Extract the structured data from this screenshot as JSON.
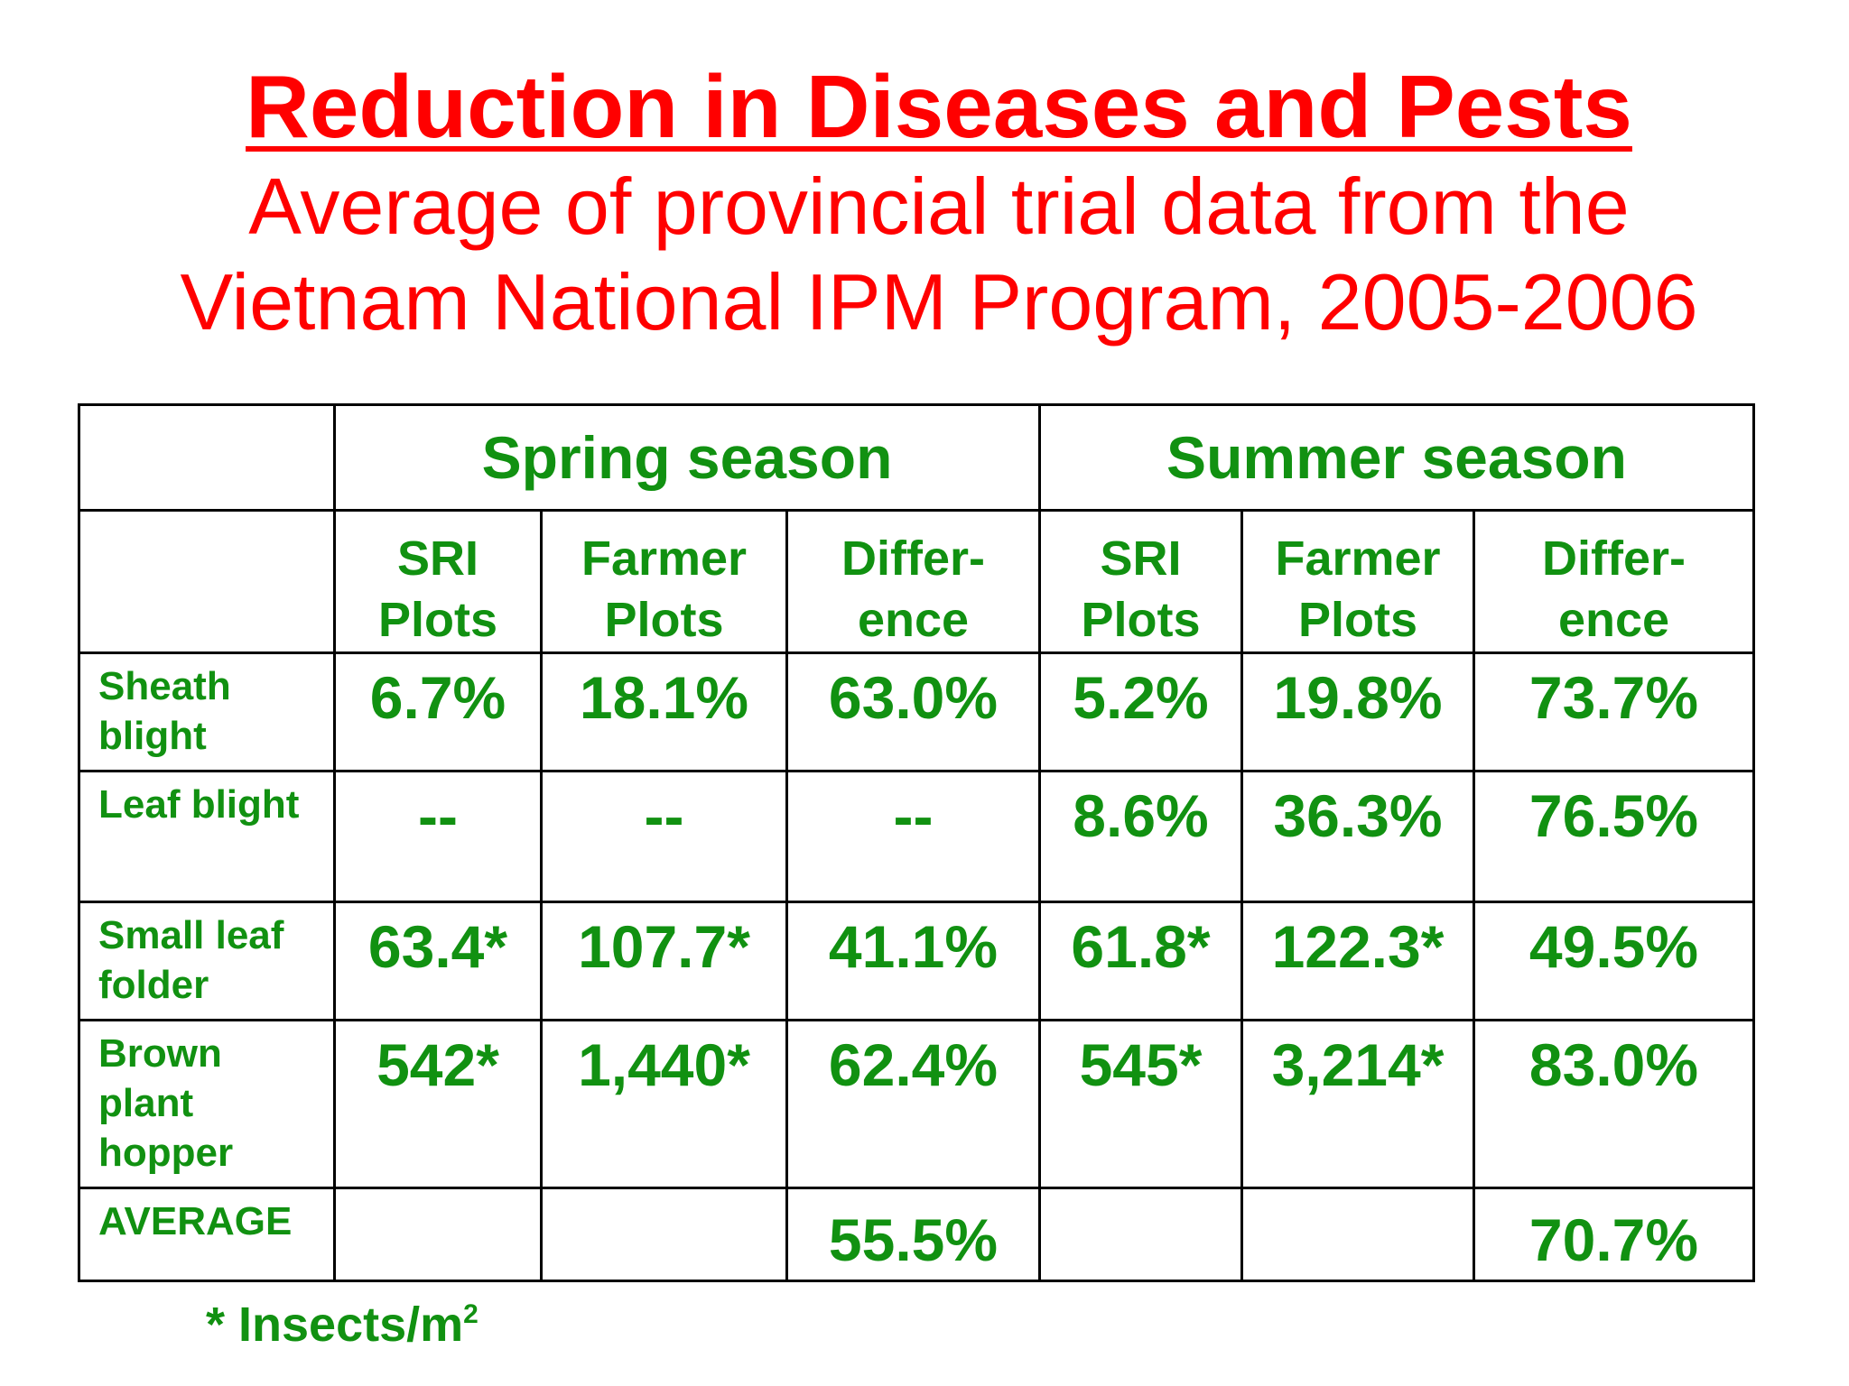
{
  "title": "Reduction in Diseases and Pests",
  "subtitle": "Average of provincial trial data from the\nVietnam National IPM Program, 2005-2006",
  "colors": {
    "title": "#ff0000",
    "table_text": "#119111",
    "table_border": "#000000"
  },
  "table": {
    "seasons": [
      "Spring season",
      "Summer season"
    ],
    "column_headers": [
      "SRI\nPlots",
      "Farmer\nPlots",
      "Differ-\nence",
      "SRI\nPlots",
      "Farmer\nPlots",
      "Differ-\nence"
    ],
    "rows": [
      {
        "label": "Sheath\nblight",
        "values": [
          "6.7%",
          "18.1%",
          "63.0%",
          "5.2%",
          "19.8%",
          "73.7%"
        ]
      },
      {
        "label": "Leaf blight",
        "values": [
          "--",
          "--",
          "--",
          "8.6%",
          "36.3%",
          "76.5%"
        ]
      },
      {
        "label": "Small leaf\nfolder",
        "values": [
          "63.4*",
          "107.7*",
          "41.1%",
          "61.8*",
          "122.3*",
          "49.5%"
        ]
      },
      {
        "label": "Brown\nplant\nhopper",
        "values": [
          "542*",
          "1,440*",
          "62.4%",
          "545*",
          "3,214*",
          "83.0%"
        ]
      },
      {
        "label": "AVERAGE",
        "values": [
          "",
          "",
          "55.5%",
          "",
          "",
          "70.7%"
        ]
      }
    ]
  },
  "footnote": {
    "text": "* Insects/m",
    "superscript": "2"
  }
}
